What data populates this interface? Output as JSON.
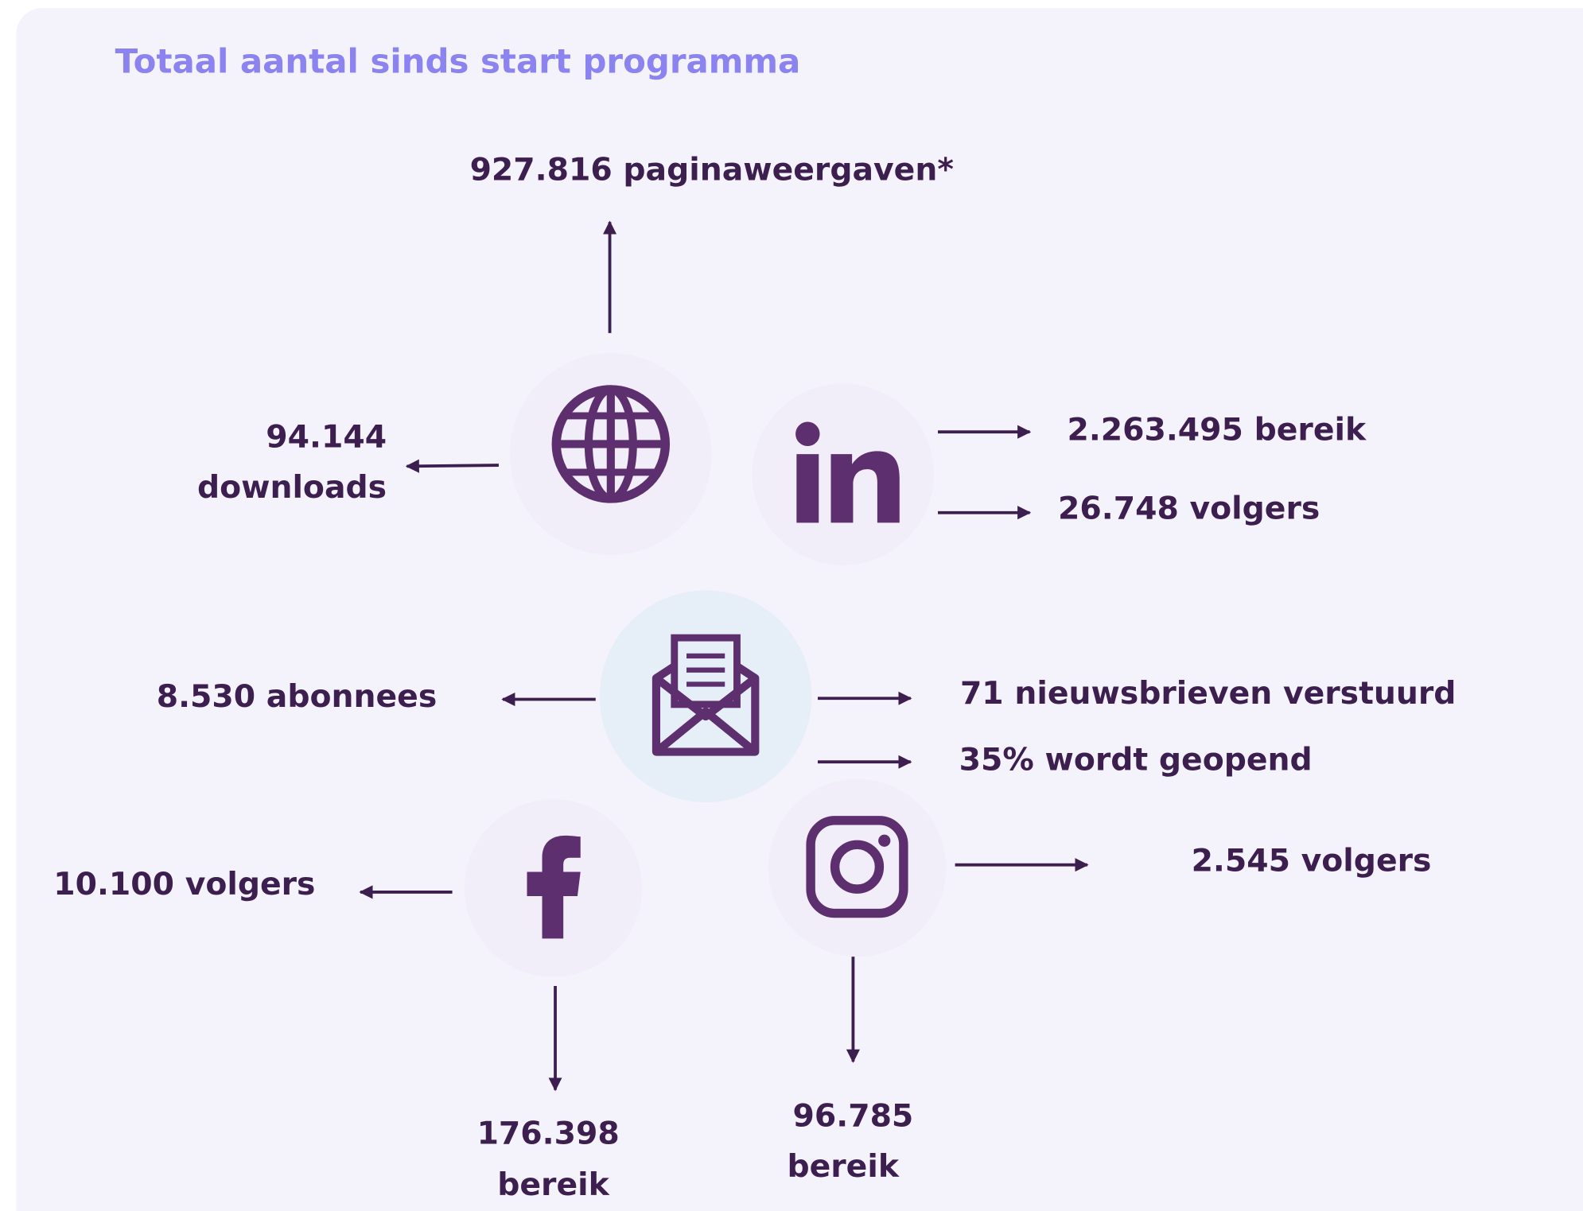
{
  "title": "Totaal aantal sinds start programma",
  "labels": [
    [
      "927.816 paginaweergaven*"
    ],
    [
      "94.144",
      "downloads"
    ],
    [
      "2.263.495 bereik"
    ],
    [
      "26.748 volgers"
    ],
    [
      "8.530 abonnees"
    ],
    [
      "71 nieuwsbrieven verstuurd"
    ],
    [
      "35% wordt geopend"
    ],
    [
      "10.100 volgers"
    ],
    [
      "2.545 volgers"
    ],
    [
      "176.398",
      "bereik"
    ],
    [
      "96.785",
      "bereik"
    ]
  ]
}
